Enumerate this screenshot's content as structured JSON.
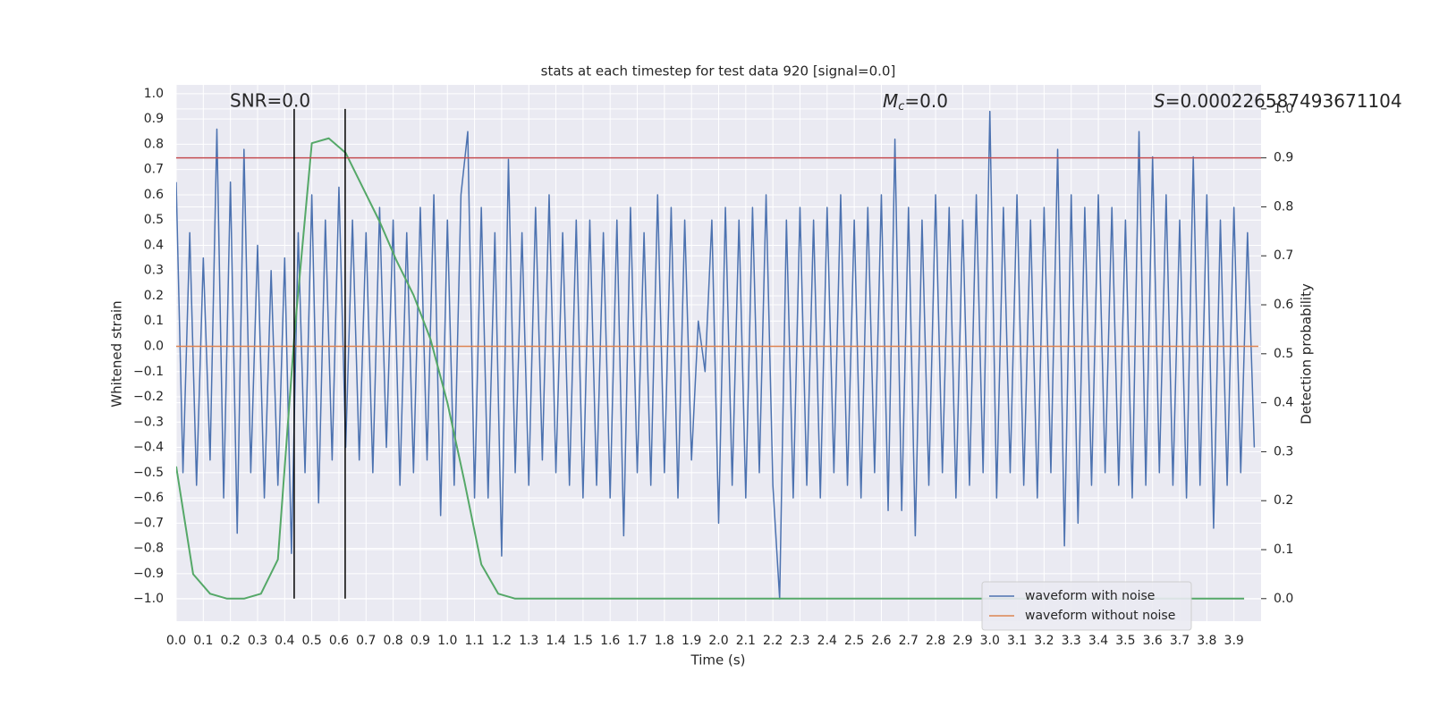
{
  "chart_data": {
    "type": "line",
    "title": "stats at each timestep for test data 920 [signal=0.0]",
    "xlabel": "Time (s)",
    "ylabel": "Whitened strain",
    "y2label": "Detection probability",
    "annotations": {
      "snr": "SNR=0.0",
      "mc": {
        "symbol": "M",
        "subscript": "c",
        "text": "=0.0"
      },
      "s": {
        "symbol": "S",
        "text": "=0.000226587493671104"
      }
    },
    "xlim": [
      0,
      4.0
    ],
    "ylim": [
      -1.088,
      1.035
    ],
    "y2lim": [
      -0.046,
      1.049
    ],
    "grid": true,
    "legend": "lower right",
    "xticks": [
      {
        "value": 0,
        "label": "0.0"
      },
      0.1,
      0.2,
      0.3,
      0.4,
      0.5,
      0.6,
      0.7,
      0.8,
      0.9,
      {
        "value": 1,
        "label": "1.0"
      },
      1.1,
      1.2,
      1.3,
      1.4,
      1.5,
      1.6,
      1.7,
      1.8,
      1.9,
      {
        "value": 2,
        "label": "2.0"
      },
      2.1,
      2.2,
      2.3,
      2.4,
      2.5,
      2.6,
      2.7,
      2.8,
      2.9,
      {
        "value": 3,
        "label": "3.0"
      },
      3.1,
      3.2,
      3.3,
      3.4,
      3.5,
      3.6,
      3.7,
      3.8,
      3.9
    ],
    "yticks": [
      {
        "value": -1,
        "label": "−1.0"
      },
      {
        "value": -0.9,
        "label": "−0.9"
      },
      {
        "value": -0.8,
        "label": "−0.8"
      },
      {
        "value": -0.7,
        "label": "−0.7"
      },
      {
        "value": -0.6,
        "label": "−0.6"
      },
      {
        "value": -0.5,
        "label": "−0.5"
      },
      {
        "value": -0.4,
        "label": "−0.4"
      },
      {
        "value": -0.3,
        "label": "−0.3"
      },
      {
        "value": -0.2,
        "label": "−0.2"
      },
      {
        "value": -0.1,
        "label": "−0.1"
      },
      {
        "value": 0,
        "label": "0.0"
      },
      0.1,
      0.2,
      0.3,
      0.4,
      0.5,
      0.6,
      0.7,
      0.8,
      0.9,
      {
        "value": 1,
        "label": "1.0"
      }
    ],
    "y2ticks": [
      {
        "value": 0,
        "label": "0.0"
      },
      0.1,
      0.2,
      0.3,
      0.4,
      0.5,
      0.6,
      0.7,
      0.8,
      0.9,
      {
        "value": 1,
        "label": "1.0"
      }
    ],
    "series": [
      {
        "name": "waveform with noise",
        "color": "#4c72b0",
        "x": [
          0,
          0.025,
          0.05,
          0.075,
          0.1,
          0.125,
          0.15,
          0.175,
          0.2,
          0.225,
          0.25,
          0.275,
          0.3,
          0.325,
          0.35,
          0.375,
          0.4,
          0.425,
          0.45,
          0.475,
          0.5,
          0.525,
          0.55,
          0.575,
          0.6,
          0.625,
          0.65,
          0.675,
          0.7,
          0.725,
          0.75,
          0.775,
          0.8,
          0.825,
          0.85,
          0.875,
          0.9,
          0.925,
          0.95,
          0.975,
          1,
          1.025,
          1.05,
          1.075,
          1.1,
          1.125,
          1.15,
          1.175,
          1.2,
          1.225,
          1.25,
          1.275,
          1.3,
          1.325,
          1.35,
          1.375,
          1.4,
          1.425,
          1.45,
          1.475,
          1.5,
          1.525,
          1.55,
          1.575,
          1.6,
          1.625,
          1.65,
          1.675,
          1.7,
          1.725,
          1.75,
          1.775,
          1.8,
          1.825,
          1.85,
          1.875,
          1.9,
          1.925,
          1.95,
          1.975,
          2,
          2.025,
          2.05,
          2.075,
          2.1,
          2.125,
          2.15,
          2.175,
          2.2,
          2.225,
          2.25,
          2.275,
          2.3,
          2.325,
          2.35,
          2.375,
          2.4,
          2.425,
          2.45,
          2.475,
          2.5,
          2.525,
          2.55,
          2.575,
          2.6,
          2.625,
          2.65,
          2.675,
          2.7,
          2.725,
          2.75,
          2.775,
          2.8,
          2.825,
          2.85,
          2.875,
          2.9,
          2.925,
          2.95,
          2.975,
          3,
          3.025,
          3.05,
          3.075,
          3.1,
          3.125,
          3.15,
          3.175,
          3.2,
          3.225,
          3.25,
          3.275,
          3.3,
          3.325,
          3.35,
          3.375,
          3.4,
          3.425,
          3.45,
          3.475,
          3.5,
          3.525,
          3.55,
          3.575,
          3.6,
          3.625,
          3.65,
          3.675,
          3.7,
          3.725,
          3.75,
          3.775,
          3.8,
          3.825,
          3.85,
          3.875,
          3.9,
          3.925,
          3.95,
          3.975
        ],
        "values": [
          0.65,
          -0.5,
          0.45,
          -0.55,
          0.35,
          -0.45,
          0.86,
          -0.6,
          0.65,
          -0.74,
          0.78,
          -0.5,
          0.4,
          -0.6,
          0.3,
          -0.55,
          0.35,
          -0.82,
          0.45,
          -0.5,
          0.6,
          -0.62,
          0.5,
          -0.45,
          0.63,
          -0.4,
          0.5,
          -0.45,
          0.45,
          -0.5,
          0.55,
          -0.4,
          0.5,
          -0.55,
          0.45,
          -0.5,
          0.55,
          -0.45,
          0.6,
          -0.67,
          0.5,
          -0.55,
          0.6,
          0.85,
          -0.6,
          0.55,
          -0.6,
          0.45,
          -0.83,
          0.74,
          -0.5,
          0.45,
          -0.55,
          0.55,
          -0.45,
          0.6,
          -0.5,
          0.45,
          -0.55,
          0.5,
          -0.6,
          0.5,
          -0.55,
          0.45,
          -0.6,
          0.5,
          -0.75,
          0.55,
          -0.5,
          0.45,
          -0.55,
          0.6,
          -0.5,
          0.55,
          -0.6,
          0.5,
          -0.45,
          0.1,
          -0.1,
          0.5,
          -0.7,
          0.55,
          -0.55,
          0.5,
          -0.6,
          0.55,
          -0.5,
          0.6,
          -0.55,
          -1.0,
          0.5,
          -0.6,
          0.55,
          -0.55,
          0.5,
          -0.6,
          0.55,
          -0.5,
          0.6,
          -0.55,
          0.5,
          -0.6,
          0.55,
          -0.5,
          0.6,
          -0.65,
          0.82,
          -0.65,
          0.55,
          -0.75,
          0.5,
          -0.55,
          0.6,
          -0.5,
          0.55,
          -0.6,
          0.5,
          -0.55,
          0.6,
          -0.5,
          0.93,
          -0.6,
          0.55,
          -0.5,
          0.6,
          -0.55,
          0.5,
          -0.6,
          0.55,
          -0.5,
          0.78,
          -0.79,
          0.6,
          -0.7,
          0.55,
          -0.55,
          0.6,
          -0.5,
          0.55,
          -0.55,
          0.5,
          -0.6,
          0.85,
          -0.55,
          0.75,
          -0.5,
          0.6,
          -0.55,
          0.5,
          -0.6,
          0.75,
          -0.55,
          0.6,
          -0.72,
          0.5,
          -0.55,
          0.55,
          -0.5,
          0.45,
          -0.4
        ]
      },
      {
        "name": "waveform without noise",
        "color": "#dd8452",
        "x": [
          0,
          3.99
        ],
        "values": [
          0,
          0
        ]
      },
      {
        "color": "#55a868",
        "axis": "y2",
        "x": [
          0,
          0.0625,
          0.125,
          0.1875,
          0.25,
          0.3125,
          0.375,
          0.4375,
          0.5,
          0.5625,
          0.625,
          0.6875,
          0.75,
          0.8125,
          0.875,
          0.9375,
          1,
          1.0625,
          1.125,
          1.1875,
          1.25,
          1.3125,
          1.375,
          1.4375,
          1.5,
          1.5625,
          1.625,
          1.6875,
          1.75,
          1.8125,
          1.875,
          1.9375,
          2,
          2.0625,
          2.125,
          2.1875,
          2.25,
          2.3125,
          2.375,
          2.4375,
          2.5,
          2.5625,
          2.625,
          2.6875,
          2.75,
          2.8125,
          2.875,
          2.9375,
          3,
          3.0625,
          3.125,
          3.1875,
          3.25,
          3.3125,
          3.375,
          3.4375,
          3.5,
          3.5625,
          3.625,
          3.6875,
          3.75,
          3.8125,
          3.875,
          3.9375
        ],
        "values": [
          0.27,
          0.05,
          0.01,
          0,
          0,
          0.01,
          0.08,
          0.55,
          0.93,
          0.94,
          0.91,
          0.84,
          0.77,
          0.69,
          0.62,
          0.53,
          0.4,
          0.24,
          0.07,
          0.01,
          0,
          0,
          0,
          0,
          0,
          0,
          0,
          0,
          0,
          0,
          0,
          0,
          0,
          0,
          0,
          0,
          0,
          0,
          0,
          0,
          0,
          0,
          0,
          0,
          0,
          0,
          0,
          0,
          0,
          0,
          0,
          0,
          0,
          0,
          0,
          0,
          0,
          0,
          0,
          0,
          0,
          0,
          0,
          0
        ]
      }
    ],
    "hline": {
      "y": 0.9,
      "axis": "y2",
      "color": "#c44e52"
    },
    "vlines": {
      "x": [
        0.435,
        0.623
      ],
      "y": [
        0,
        1
      ],
      "axis": "y2",
      "color": "#000000"
    }
  }
}
